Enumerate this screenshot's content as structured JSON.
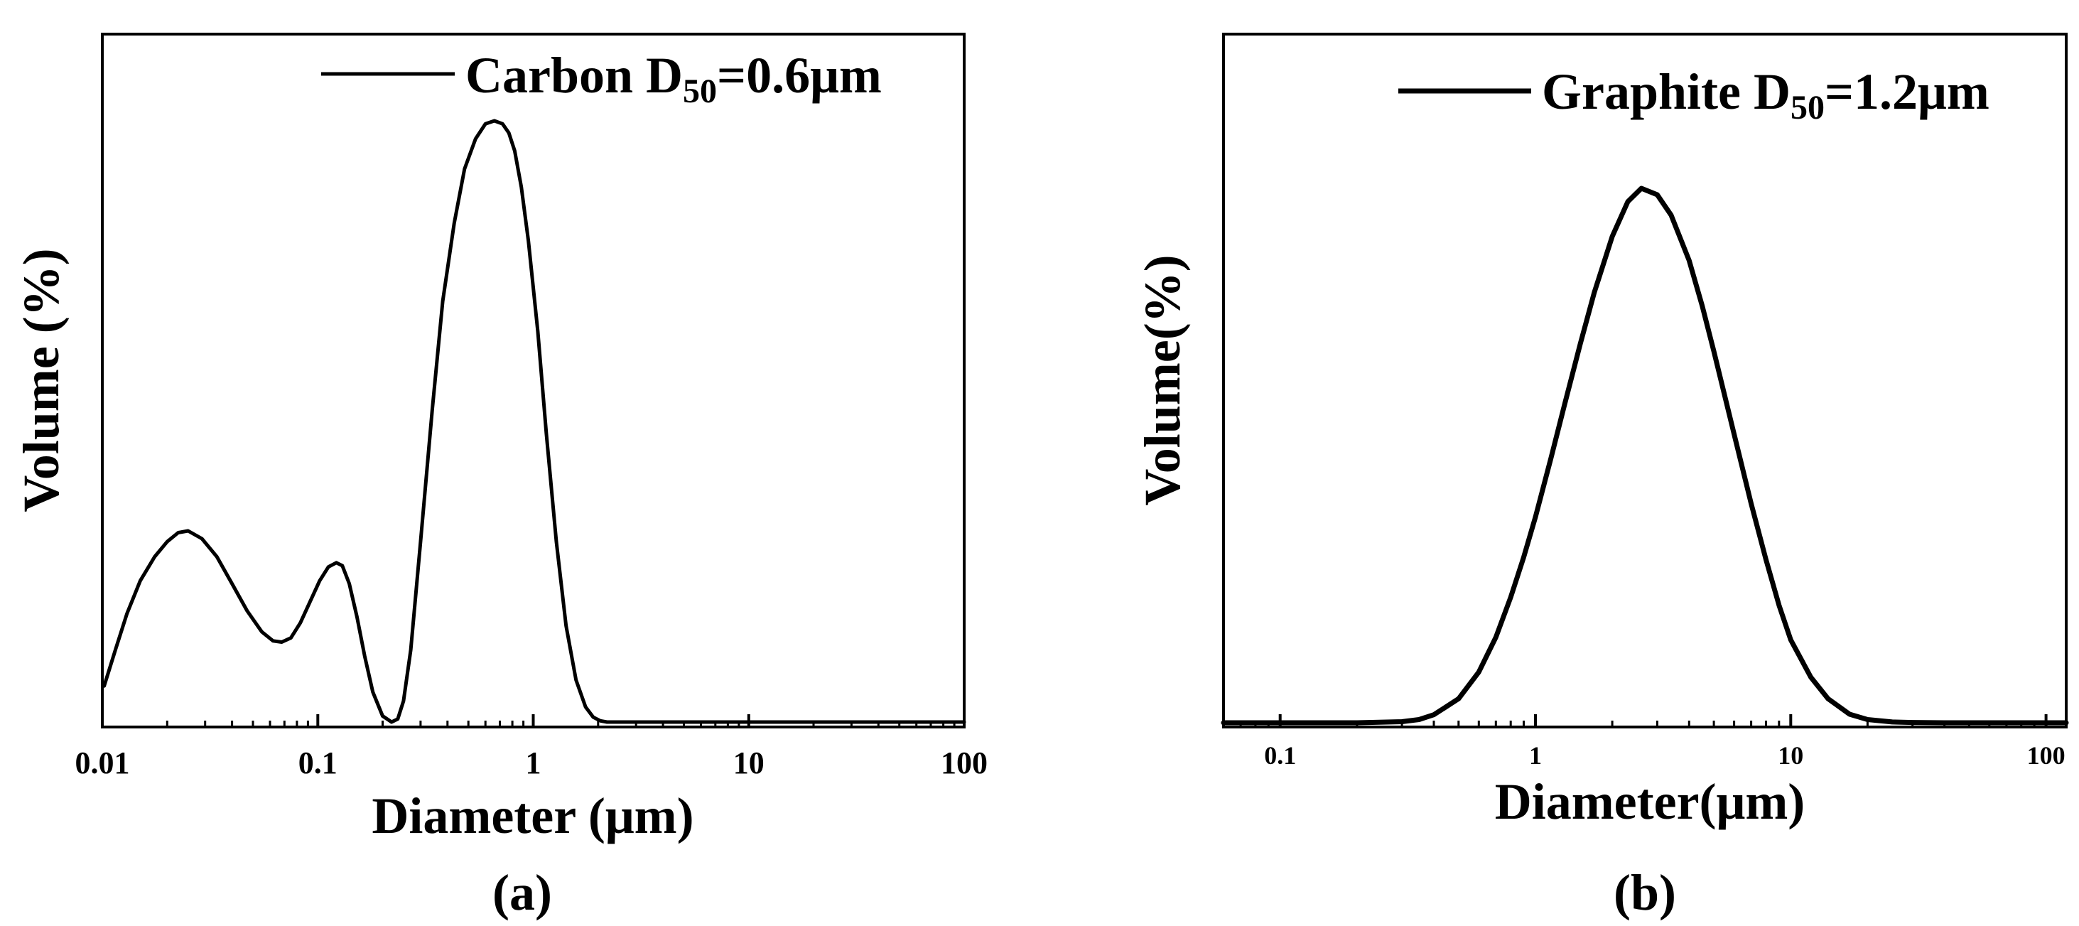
{
  "chart_data": [
    {
      "panel_label": "(a)",
      "type": "line",
      "xscale": "log",
      "xlim": [
        0.01,
        100
      ],
      "ylim": [
        0,
        100
      ],
      "xlabel": "Diameter (μm)",
      "ylabel": "Volume (%)",
      "xticks": [
        {
          "v": 0.01,
          "label": "0.01"
        },
        {
          "v": 0.1,
          "label": "0.1"
        },
        {
          "v": 1,
          "label": "1"
        },
        {
          "v": 10,
          "label": "10"
        },
        {
          "v": 100,
          "label": "100"
        }
      ],
      "legend": {
        "position": "top-right",
        "name": "Carbon D",
        "sub": "50",
        "suffix": "=0.6μm"
      },
      "series": [
        {
          "x": [
            0.0102,
            0.0115,
            0.013,
            0.015,
            0.0175,
            0.02,
            0.0225,
            0.025,
            0.029,
            0.034,
            0.04,
            0.047,
            0.055,
            0.062,
            0.068,
            0.075,
            0.083,
            0.092,
            0.102,
            0.112,
            0.122,
            0.13,
            0.14,
            0.152,
            0.165,
            0.18,
            0.2,
            0.22,
            0.235,
            0.25,
            0.27,
            0.3,
            0.34,
            0.38,
            0.43,
            0.48,
            0.54,
            0.6,
            0.66,
            0.72,
            0.77,
            0.82,
            0.88,
            0.95,
            1.05,
            1.15,
            1.28,
            1.42,
            1.58,
            1.75,
            1.9,
            2.05,
            2.2,
            3,
            5,
            10,
            20,
            50,
            100
          ],
          "y": [
            6,
            12,
            18,
            23.5,
            27.5,
            30,
            31.5,
            31.8,
            30.5,
            27.5,
            23,
            18.5,
            15,
            13.5,
            13.3,
            14,
            16.5,
            20,
            23.5,
            25.8,
            26.5,
            26,
            23,
            17.5,
            11,
            5,
            1,
            0,
            0.5,
            3.5,
            12,
            30,
            52,
            70,
            83,
            92,
            97,
            99.5,
            100,
            99.5,
            98,
            95,
            89,
            80,
            65,
            48,
            30,
            16,
            7,
            2.5,
            0.8,
            0.2,
            0,
            0,
            0,
            0,
            0,
            0,
            0
          ]
        }
      ]
    },
    {
      "panel_label": "(b)",
      "type": "line",
      "xscale": "log",
      "xlim": [
        0.06,
        120
      ],
      "ylim": [
        0,
        100
      ],
      "xlabel": "Diameter(μm)",
      "ylabel": "Volume(%)",
      "xticks": [
        {
          "v": 0.1,
          "label": "0.1"
        },
        {
          "v": 1,
          "label": "1"
        },
        {
          "v": 10,
          "label": "10"
        },
        {
          "v": 100,
          "label": "100"
        }
      ],
      "legend": {
        "position": "top-right",
        "name": "Graphite D",
        "sub": "50",
        "suffix": "=1.2μm"
      },
      "series": [
        {
          "x": [
            0.06,
            0.1,
            0.2,
            0.3,
            0.35,
            0.4,
            0.5,
            0.6,
            0.7,
            0.8,
            0.9,
            1.0,
            1.15,
            1.3,
            1.5,
            1.7,
            2.0,
            2.3,
            2.6,
            3.0,
            3.4,
            4.0,
            4.5,
            5.0,
            6.0,
            7.0,
            8.0,
            9.0,
            10,
            12,
            14,
            17,
            20,
            25,
            30,
            40,
            60,
            120
          ],
          "y": [
            0,
            0,
            0,
            0.2,
            0.6,
            1.5,
            4.5,
            9.5,
            16,
            23.5,
            31,
            38.5,
            49.5,
            59.5,
            71,
            80.5,
            91,
            97.5,
            100,
            98.8,
            95,
            86.5,
            78,
            69.5,
            54,
            41,
            30.5,
            22,
            15.5,
            8.5,
            4.5,
            1.6,
            0.6,
            0.15,
            0.05,
            0,
            0,
            0
          ]
        }
      ]
    }
  ]
}
